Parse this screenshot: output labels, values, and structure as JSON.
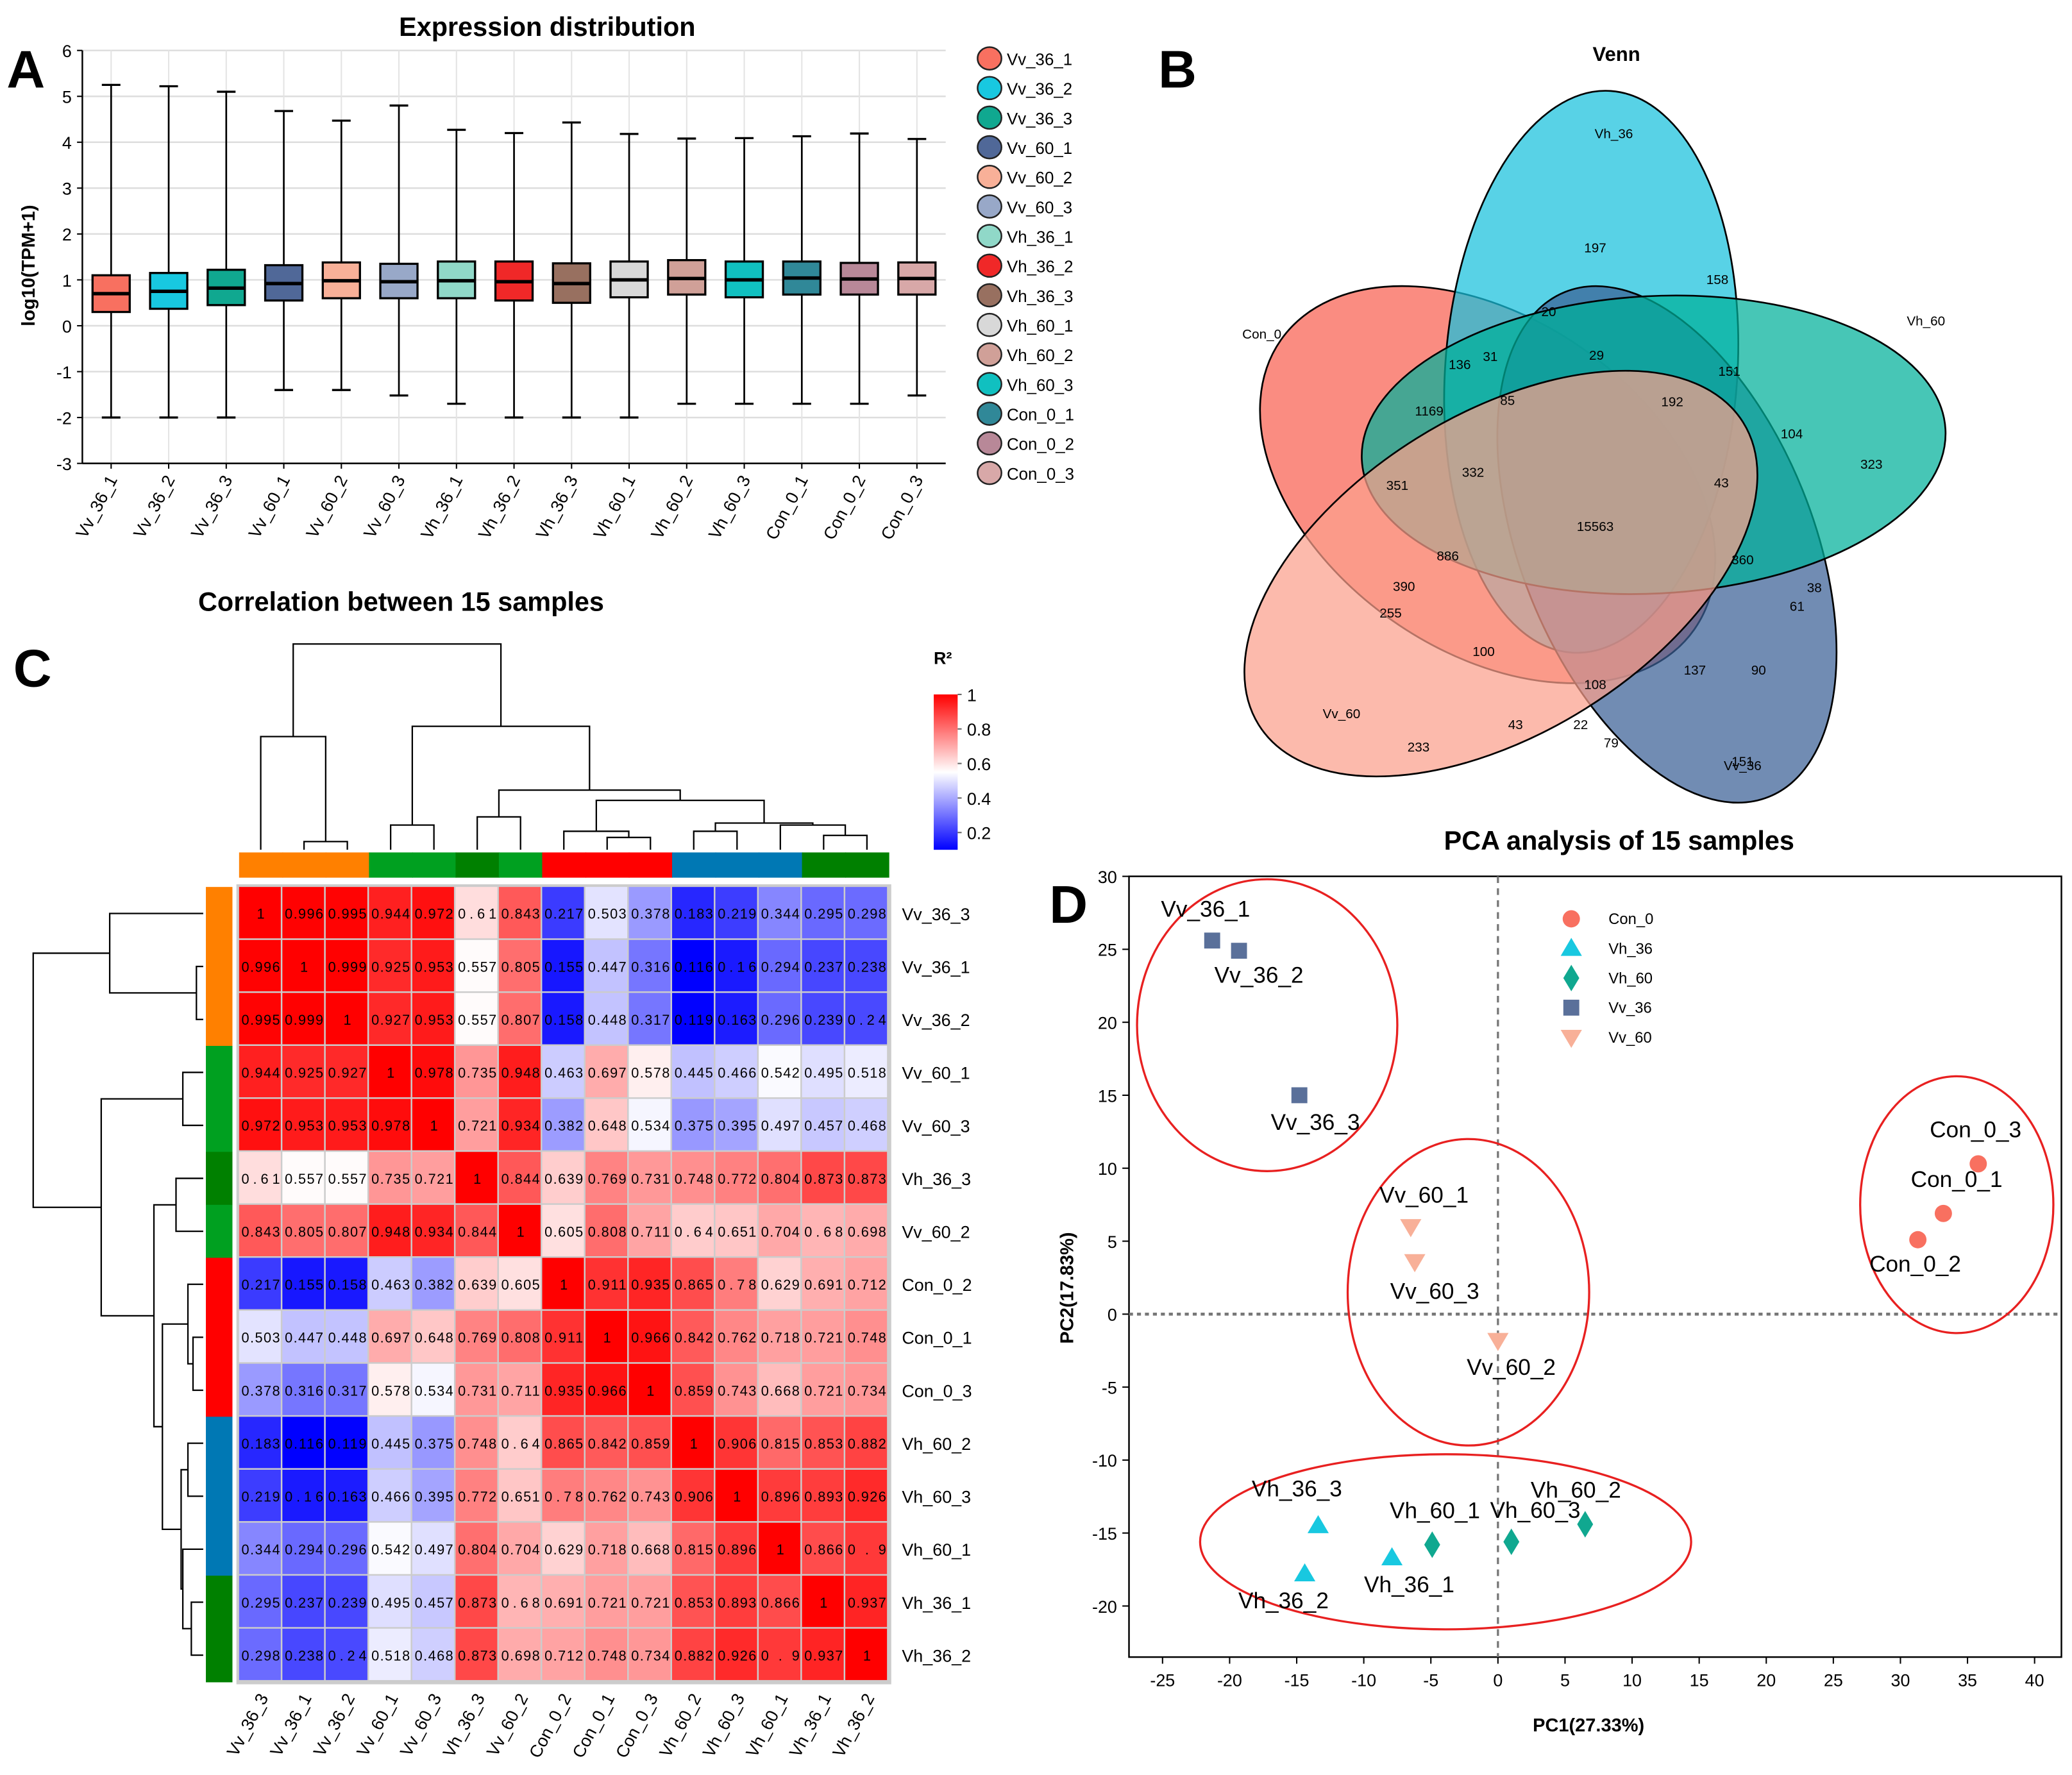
{
  "panel_letters": {
    "a": "A",
    "b": "B",
    "c": "C",
    "d": "D"
  },
  "chart_data": [
    {
      "id": "A",
      "type": "box",
      "title": "Expression distribution",
      "xlabel": "",
      "ylabel": "log10(TPM+1)",
      "ylim": [
        -3,
        6
      ],
      "yticks": [
        -3,
        -2,
        -1,
        0,
        1,
        2,
        3,
        4,
        5,
        6
      ],
      "grid": true,
      "legend_position": "right",
      "categories": [
        "Vv_36_1",
        "Vv_36_2",
        "Vv_36_3",
        "Vv_60_1",
        "Vv_60_2",
        "Vv_60_3",
        "Vh_36_1",
        "Vh_36_2",
        "Vh_36_3",
        "Vh_60_1",
        "Vh_60_2",
        "Vh_60_3",
        "Con_0_1",
        "Con_0_2",
        "Con_0_3"
      ],
      "colors": [
        "#f87060",
        "#18c8e0",
        "#10a890",
        "#506898",
        "#f8b098",
        "#98a8c8",
        "#90d8c8",
        "#f02828",
        "#987060",
        "#d8d8d8",
        "#d0a098",
        "#10c0c0",
        "#308898",
        "#b88898",
        "#d8a8a8"
      ],
      "boxes": [
        {
          "min": -2.0,
          "q1": 0.3,
          "median": 0.7,
          "q3": 1.1,
          "max": 5.25
        },
        {
          "min": -2.0,
          "q1": 0.37,
          "median": 0.75,
          "q3": 1.15,
          "max": 5.22
        },
        {
          "min": -2.0,
          "q1": 0.45,
          "median": 0.82,
          "q3": 1.22,
          "max": 5.1
        },
        {
          "min": -1.4,
          "q1": 0.55,
          "median": 0.92,
          "q3": 1.32,
          "max": 4.68
        },
        {
          "min": -1.4,
          "q1": 0.6,
          "median": 0.98,
          "q3": 1.38,
          "max": 4.47
        },
        {
          "min": -1.52,
          "q1": 0.6,
          "median": 0.96,
          "q3": 1.35,
          "max": 4.8
        },
        {
          "min": -1.7,
          "q1": 0.6,
          "median": 0.98,
          "q3": 1.4,
          "max": 4.27
        },
        {
          "min": -2.0,
          "q1": 0.55,
          "median": 0.96,
          "q3": 1.4,
          "max": 4.2
        },
        {
          "min": -2.0,
          "q1": 0.5,
          "median": 0.92,
          "q3": 1.36,
          "max": 4.43
        },
        {
          "min": -2.0,
          "q1": 0.62,
          "median": 1.0,
          "q3": 1.4,
          "max": 4.18
        },
        {
          "min": -1.7,
          "q1": 0.68,
          "median": 1.03,
          "q3": 1.43,
          "max": 4.08
        },
        {
          "min": -1.7,
          "q1": 0.62,
          "median": 1.0,
          "q3": 1.4,
          "max": 4.09
        },
        {
          "min": -1.7,
          "q1": 0.68,
          "median": 1.04,
          "q3": 1.4,
          "max": 4.13
        },
        {
          "min": -1.7,
          "q1": 0.68,
          "median": 1.02,
          "q3": 1.37,
          "max": 4.19
        },
        {
          "min": -1.52,
          "q1": 0.68,
          "median": 1.03,
          "q3": 1.38,
          "max": 4.07
        }
      ]
    },
    {
      "id": "B",
      "type": "venn",
      "title": "Venn",
      "sets": [
        {
          "name": "Vh_36",
          "color": "#18c0dc"
        },
        {
          "name": "Vh_60",
          "color": "#00b09a"
        },
        {
          "name": "Vv_36",
          "color": "#3a5f96"
        },
        {
          "name": "Vv_60",
          "color": "#fba08c"
        },
        {
          "name": "Con_0",
          "color": "#f86050"
        }
      ],
      "region_counts": [
        "197",
        "20",
        "158",
        "29",
        "136",
        "31",
        "151",
        "85",
        "192",
        "1169",
        "104",
        "323",
        "332",
        "43",
        "351",
        "15563",
        "886",
        "360",
        "390",
        "38",
        "61",
        "255",
        "100",
        "137",
        "90",
        "108",
        "43",
        "22",
        "79",
        "233",
        "151"
      ]
    },
    {
      "id": "C",
      "type": "heatmap",
      "title": "Correlation between 15 samples",
      "legend_title": "R²",
      "legend_ticks": [
        "1",
        "0.8",
        "0.6",
        "0.4",
        "0.2"
      ],
      "legend_tick_values": [
        1,
        0.8,
        0.6,
        0.4,
        0.2
      ],
      "color_range": [
        0.116,
        1
      ],
      "color_scale": [
        "#0000ff",
        "#ffffff",
        "#ff0000"
      ],
      "labels": [
        "Vv_36_3",
        "Vv_36_1",
        "Vv_36_2",
        "Vv_60_1",
        "Vv_60_3",
        "Vh_36_3",
        "Vv_60_2",
        "Con_0_2",
        "Con_0_1",
        "Con_0_3",
        "Vh_60_2",
        "Vh_60_3",
        "Vh_60_1",
        "Vh_36_1",
        "Vh_36_2"
      ],
      "group_colors": [
        "#ff8000",
        "#ff8000",
        "#ff8000",
        "#00a020",
        "#00a020",
        "#008000",
        "#00a020",
        "#ff0000",
        "#ff0000",
        "#ff0000",
        "#0078b4",
        "#0078b4",
        "#0078b4",
        "#008000",
        "#008000"
      ],
      "matrix": [
        [
          "1",
          "0.996",
          "0.995",
          "0.944",
          "0.972",
          "0.61",
          "0.843",
          "0.217",
          "0.503",
          "0.378",
          "0.183",
          "0.219",
          "0.344",
          "0.295",
          "0.298"
        ],
        [
          "0.996",
          "1",
          "0.999",
          "0.925",
          "0.953",
          "0.557",
          "0.805",
          "0.155",
          "0.447",
          "0.316",
          "0.116",
          "0.16",
          "0.294",
          "0.237",
          "0.238"
        ],
        [
          "0.995",
          "0.999",
          "1",
          "0.927",
          "0.953",
          "0.557",
          "0.807",
          "0.158",
          "0.448",
          "0.317",
          "0.119",
          "0.163",
          "0.296",
          "0.239",
          "0.24"
        ],
        [
          "0.944",
          "0.925",
          "0.927",
          "1",
          "0.978",
          "0.735",
          "0.948",
          "0.463",
          "0.697",
          "0.578",
          "0.445",
          "0.466",
          "0.542",
          "0.495",
          "0.518"
        ],
        [
          "0.972",
          "0.953",
          "0.953",
          "0.978",
          "1",
          "0.721",
          "0.934",
          "0.382",
          "0.648",
          "0.534",
          "0.375",
          "0.395",
          "0.497",
          "0.457",
          "0.468"
        ],
        [
          "0.61",
          "0.557",
          "0.557",
          "0.735",
          "0.721",
          "1",
          "0.844",
          "0.639",
          "0.769",
          "0.731",
          "0.748",
          "0.772",
          "0.804",
          "0.873",
          "0.873"
        ],
        [
          "0.843",
          "0.805",
          "0.807",
          "0.948",
          "0.934",
          "0.844",
          "1",
          "0.605",
          "0.808",
          "0.711",
          "0.64",
          "0.651",
          "0.704",
          "0.68",
          "0.698"
        ],
        [
          "0.217",
          "0.155",
          "0.158",
          "0.463",
          "0.382",
          "0.639",
          "0.605",
          "1",
          "0.911",
          "0.935",
          "0.865",
          "0.78",
          "0.629",
          "0.691",
          "0.712"
        ],
        [
          "0.503",
          "0.447",
          "0.448",
          "0.697",
          "0.648",
          "0.769",
          "0.808",
          "0.911",
          "1",
          "0.966",
          "0.842",
          "0.762",
          "0.718",
          "0.721",
          "0.748"
        ],
        [
          "0.378",
          "0.316",
          "0.317",
          "0.578",
          "0.534",
          "0.731",
          "0.711",
          "0.935",
          "0.966",
          "1",
          "0.859",
          "0.743",
          "0.668",
          "0.721",
          "0.734"
        ],
        [
          "0.183",
          "0.116",
          "0.119",
          "0.445",
          "0.375",
          "0.748",
          "0.64",
          "0.865",
          "0.842",
          "0.859",
          "1",
          "0.906",
          "0.815",
          "0.853",
          "0.882"
        ],
        [
          "0.219",
          "0.16",
          "0.163",
          "0.466",
          "0.395",
          "0.772",
          "0.651",
          "0.78",
          "0.762",
          "0.743",
          "0.906",
          "1",
          "0.896",
          "0.893",
          "0.926"
        ],
        [
          "0.344",
          "0.294",
          "0.296",
          "0.542",
          "0.497",
          "0.804",
          "0.704",
          "0.629",
          "0.718",
          "0.668",
          "0.815",
          "0.896",
          "1",
          "0.866",
          "0.9"
        ],
        [
          "0.295",
          "0.237",
          "0.239",
          "0.495",
          "0.457",
          "0.873",
          "0.68",
          "0.691",
          "0.721",
          "0.721",
          "0.853",
          "0.893",
          "0.866",
          "1",
          "0.937"
        ],
        [
          "0.298",
          "0.238",
          "0.24",
          "0.518",
          "0.468",
          "0.873",
          "0.698",
          "0.712",
          "0.748",
          "0.734",
          "0.882",
          "0.926",
          "0.9",
          "0.937",
          "1"
        ]
      ],
      "dendrogram_merges": [
        [
          1,
          2,
          0.04
        ],
        [
          0,
          "m0",
          0.55
        ],
        [
          3,
          4,
          0.12
        ],
        [
          5,
          6,
          0.16
        ],
        [
          8,
          9,
          0.06
        ],
        [
          7,
          "m4",
          0.09
        ],
        [
          10,
          11,
          0.09
        ],
        [
          13,
          14,
          0.07
        ],
        [
          12,
          "m7",
          0.12
        ],
        [
          "m6",
          "m8",
          0.13
        ],
        [
          "m5",
          "m9",
          0.24
        ],
        [
          "m3",
          "m10",
          0.29
        ],
        [
          "m2",
          "m11",
          0.6
        ],
        [
          "m1",
          "m12",
          1.0
        ]
      ]
    },
    {
      "id": "D",
      "type": "scatter",
      "title": "PCA analysis of 15 samples",
      "xlabel": "PC1(27.33%)",
      "ylabel": "PC2(17.83%)",
      "xlim": [
        -27.5,
        42
      ],
      "ylim": [
        -23.5,
        30
      ],
      "xticks": [
        -25,
        -20,
        -15,
        -10,
        -5,
        0,
        5,
        10,
        15,
        20,
        25,
        30,
        35,
        40
      ],
      "yticks": [
        -20,
        -15,
        -10,
        -5,
        0,
        5,
        10,
        15,
        20,
        25,
        30
      ],
      "grid": false,
      "legend_position": "top-center",
      "reference_lines": {
        "x": 0,
        "y": 0
      },
      "series": [
        {
          "name": "Con_0",
          "marker": "circle",
          "color": "#f87060",
          "points": [
            {
              "label": "Con_0_1",
              "x": 33.2,
              "y": 6.9
            },
            {
              "label": "Con_0_2",
              "x": 31.3,
              "y": 5.1
            },
            {
              "label": "Con_0_3",
              "x": 35.8,
              "y": 10.3
            }
          ]
        },
        {
          "name": "Vh_36",
          "marker": "triangle-up",
          "color": "#18c8e0",
          "points": [
            {
              "label": "Vh_36_1",
              "x": -7.9,
              "y": -16.7
            },
            {
              "label": "Vh_36_2",
              "x": -14.4,
              "y": -17.8
            },
            {
              "label": "Vh_36_3",
              "x": -13.4,
              "y": -14.5
            }
          ]
        },
        {
          "name": "Vh_60",
          "marker": "diamond",
          "color": "#10a890",
          "points": [
            {
              "label": "Vh_60_1",
              "x": -4.9,
              "y": -15.8
            },
            {
              "label": "Vh_60_2",
              "x": 6.5,
              "y": -14.4
            },
            {
              "label": "Vh_60_3",
              "x": 1.0,
              "y": -15.6
            }
          ]
        },
        {
          "name": "Vv_36",
          "marker": "square",
          "color": "#5a709a",
          "points": [
            {
              "label": "Vv_36_1",
              "x": -21.3,
              "y": 25.6
            },
            {
              "label": "Vv_36_2",
              "x": -19.3,
              "y": 24.9
            },
            {
              "label": "Vv_36_3",
              "x": -14.8,
              "y": 15.0
            }
          ]
        },
        {
          "name": "Vv_60",
          "marker": "triangle-down",
          "color": "#f8b098",
          "points": [
            {
              "label": "Vv_60_1",
              "x": -6.5,
              "y": 6.0
            },
            {
              "label": "Vv_60_2",
              "x": 0.0,
              "y": -1.8
            },
            {
              "label": "Vv_60_3",
              "x": -6.2,
              "y": 3.6
            }
          ]
        }
      ],
      "ellipses": [
        {
          "group": "Vv_36",
          "cx": -17.2,
          "cy": 19.8,
          "rx": 9.7,
          "ry": 10.0
        },
        {
          "group": "Vv_60",
          "cx": -2.2,
          "cy": 1.5,
          "rx": 9.0,
          "ry": 10.5
        },
        {
          "group": "Con_0",
          "cx": 34.2,
          "cy": 7.5,
          "rx": 7.2,
          "ry": 8.8
        },
        {
          "group": "Vh_36+Vh_60",
          "cx": -3.9,
          "cy": -15.6,
          "rx": 18.3,
          "ry": 6.0
        }
      ],
      "ellipse_color": "#e82020"
    }
  ]
}
